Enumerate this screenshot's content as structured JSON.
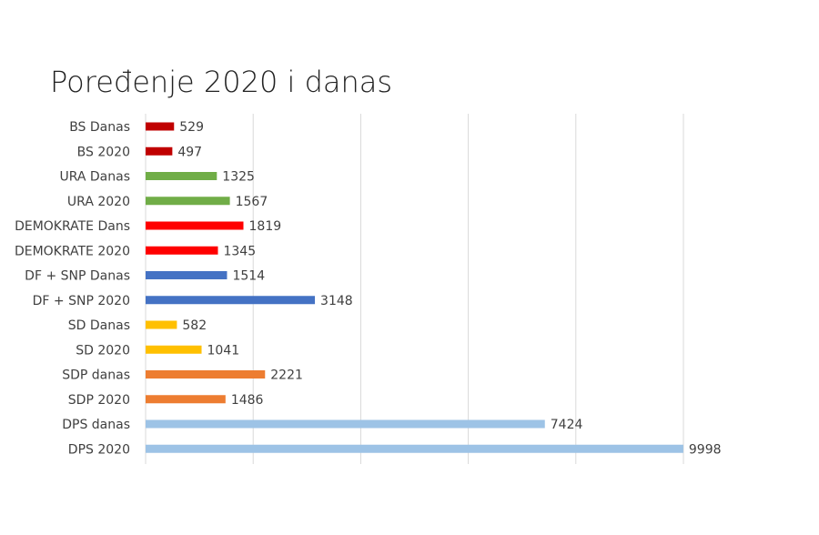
{
  "chart_data": {
    "type": "hbar",
    "title": "Poređenje 2020 i danas",
    "categories": [
      "BS Danas",
      "BS 2020",
      "URA Danas",
      "URA 2020",
      "DEMOKRATE Dans",
      "DEMOKRATE 2020",
      "DF + SNP Danas",
      "DF + SNP 2020",
      "SD Danas",
      "SD 2020",
      "SDP danas",
      "SDP 2020",
      "DPS danas",
      "DPS 2020"
    ],
    "values": [
      529,
      497,
      1325,
      1567,
      1819,
      1345,
      1514,
      3148,
      582,
      1041,
      2221,
      1486,
      7424,
      9998
    ],
    "colors": [
      "#c00000",
      "#c00000",
      "#70ad47",
      "#70ad47",
      "#ff0000",
      "#ff0000",
      "#4472c4",
      "#4472c4",
      "#ffc000",
      "#ffc000",
      "#ed7d31",
      "#ed7d31",
      "#9dc3e6",
      "#9dc3e6"
    ],
    "xlim": [
      0,
      10000
    ],
    "xticks": [
      0,
      2000,
      4000,
      6000,
      8000,
      10000
    ],
    "grid": true
  }
}
